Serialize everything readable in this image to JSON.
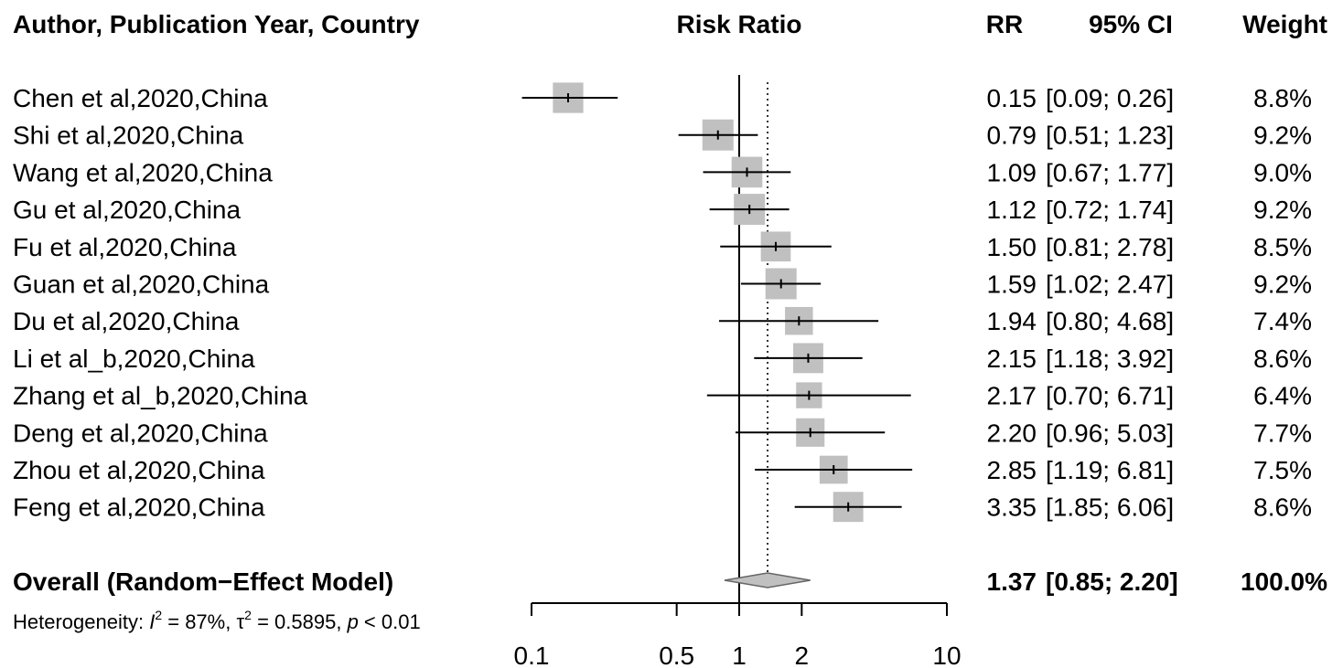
{
  "chart_data": {
    "type": "forest",
    "headers": {
      "study": "Author, Publication Year, Country",
      "plot": "Risk Ratio",
      "rr": "RR",
      "ci": "95% CI",
      "weight": "Weight"
    },
    "x_axis": {
      "scale": "log",
      "xlim": [
        0.1,
        10
      ],
      "ticks": [
        0.1,
        0.5,
        1,
        2,
        10
      ],
      "tick_labels": [
        "0.1",
        "0.5",
        "1",
        "2",
        "10"
      ],
      "reference_line": 1
    },
    "studies": [
      {
        "label": "Chen et al,2020,China",
        "rr": 0.15,
        "lower": 0.09,
        "upper": 0.26,
        "weight": 8.8,
        "rr_text": "0.15",
        "ci_text": "[0.09; 0.26]",
        "weight_text": "8.8%"
      },
      {
        "label": "Shi et al,2020,China",
        "rr": 0.79,
        "lower": 0.51,
        "upper": 1.23,
        "weight": 9.2,
        "rr_text": "0.79",
        "ci_text": "[0.51; 1.23]",
        "weight_text": "9.2%"
      },
      {
        "label": "Wang et al,2020,China",
        "rr": 1.09,
        "lower": 0.67,
        "upper": 1.77,
        "weight": 9.0,
        "rr_text": "1.09",
        "ci_text": "[0.67; 1.77]",
        "weight_text": "9.0%"
      },
      {
        "label": "Gu et al,2020,China",
        "rr": 1.12,
        "lower": 0.72,
        "upper": 1.74,
        "weight": 9.2,
        "rr_text": "1.12",
        "ci_text": "[0.72; 1.74]",
        "weight_text": "9.2%"
      },
      {
        "label": "Fu et al,2020,China",
        "rr": 1.5,
        "lower": 0.81,
        "upper": 2.78,
        "weight": 8.5,
        "rr_text": "1.50",
        "ci_text": "[0.81; 2.78]",
        "weight_text": "8.5%"
      },
      {
        "label": "Guan et al,2020,China",
        "rr": 1.59,
        "lower": 1.02,
        "upper": 2.47,
        "weight": 9.2,
        "rr_text": "1.59",
        "ci_text": "[1.02; 2.47]",
        "weight_text": "9.2%"
      },
      {
        "label": "Du et al,2020,China",
        "rr": 1.94,
        "lower": 0.8,
        "upper": 4.68,
        "weight": 7.4,
        "rr_text": "1.94",
        "ci_text": "[0.80; 4.68]",
        "weight_text": "7.4%"
      },
      {
        "label": "Li et al_b,2020,China",
        "rr": 2.15,
        "lower": 1.18,
        "upper": 3.92,
        "weight": 8.6,
        "rr_text": "2.15",
        "ci_text": "[1.18; 3.92]",
        "weight_text": "8.6%"
      },
      {
        "label": "Zhang et al_b,2020,China",
        "rr": 2.17,
        "lower": 0.7,
        "upper": 6.71,
        "weight": 6.4,
        "rr_text": "2.17",
        "ci_text": "[0.70; 6.71]",
        "weight_text": "6.4%"
      },
      {
        "label": "Deng et al,2020,China",
        "rr": 2.2,
        "lower": 0.96,
        "upper": 5.03,
        "weight": 7.7,
        "rr_text": "2.20",
        "ci_text": "[0.96; 5.03]",
        "weight_text": "7.7%"
      },
      {
        "label": "Zhou et al,2020,China",
        "rr": 2.85,
        "lower": 1.19,
        "upper": 6.81,
        "weight": 7.5,
        "rr_text": "2.85",
        "ci_text": "[1.19; 6.81]",
        "weight_text": "7.5%"
      },
      {
        "label": "Feng et al,2020,China",
        "rr": 3.35,
        "lower": 1.85,
        "upper": 6.06,
        "weight": 8.6,
        "rr_text": "3.35",
        "ci_text": "[1.85; 6.06]",
        "weight_text": "8.6%"
      }
    ],
    "overall": {
      "label": "Overall (Random−Effect Model)",
      "rr": 1.37,
      "lower": 0.85,
      "upper": 2.2,
      "rr_text": "1.37",
      "ci_text": "[0.85; 2.20]",
      "weight_text": "100.0%"
    },
    "heterogeneity": {
      "prefix": "Heterogeneity: ",
      "i2_symbol": "I",
      "i2_value": " = 87%, ",
      "tau2_symbol": "τ",
      "tau2_value": " = 0.5895, ",
      "p_symbol": "p",
      "p_value": " < 0.01"
    },
    "colors": {
      "box": "#c0c0c0",
      "line": "#000000",
      "diamond_fill": "#c0c0c0"
    }
  }
}
